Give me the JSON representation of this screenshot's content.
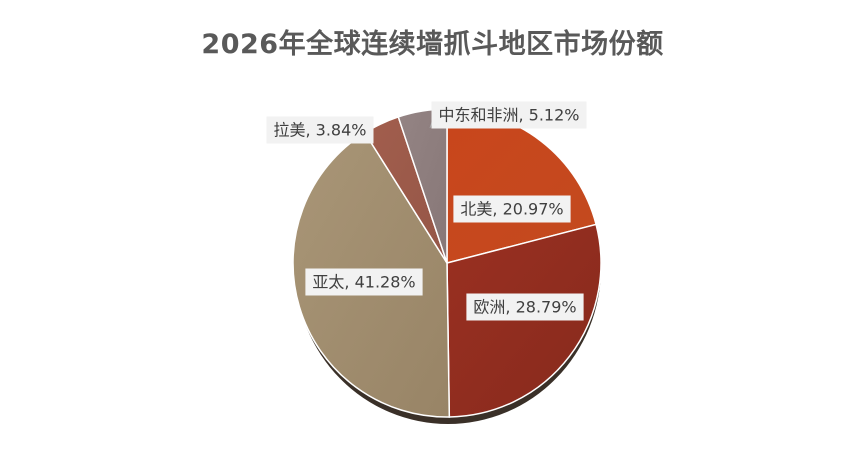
{
  "chart_data": {
    "type": "pie",
    "title": "2026年全球连续墙抓斗地区市场份额",
    "categories": [
      "北美",
      "欧洲",
      "亚太",
      "拉美",
      "中东和非洲"
    ],
    "values": [
      20.97,
      28.79,
      41.28,
      3.84,
      5.12
    ],
    "unit": "%",
    "data_labels": [
      "北美, 20.97%",
      "欧洲, 28.79%",
      "亚太, 41.28%",
      "拉美, 3.84%",
      "中东和非洲, 5.12%"
    ],
    "colors": [
      "#C9461C",
      "#922D1F",
      "#A08C6C",
      "#9C5B4B",
      "#8E7E7E"
    ],
    "legend": "none"
  }
}
